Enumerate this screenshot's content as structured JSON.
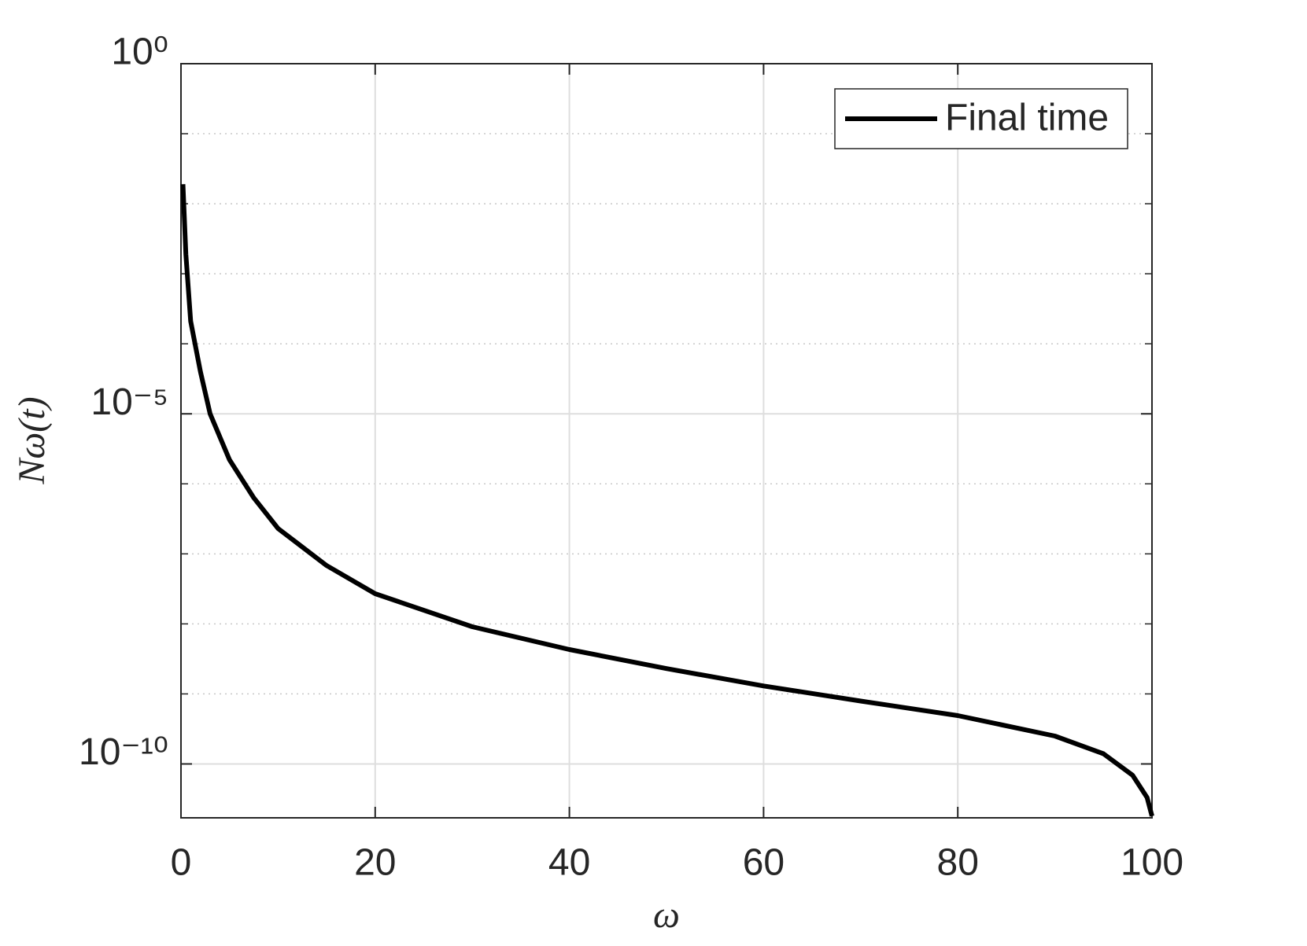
{
  "chart_data": {
    "type": "line",
    "xlabel": "ω",
    "ylabel": "Nω(t)",
    "x": [
      0.2,
      0.5,
      1,
      2,
      3,
      5,
      7.5,
      10,
      15,
      20,
      30,
      40,
      50,
      60,
      70,
      80,
      90,
      95,
      98,
      99.5,
      100
    ],
    "series": [
      {
        "name": "Final time",
        "color": "#000000",
        "values": [
          0.019,
          0.0019,
          0.00021,
          4e-05,
          1e-05,
          2.2e-06,
          6.3e-07,
          2.3e-07,
          6.8e-08,
          2.7e-08,
          9.1e-09,
          4.3e-09,
          2.3e-09,
          1.3e-09,
          7.9e-10,
          4.9e-10,
          2.5e-10,
          1.4e-10,
          6.9e-11,
          3.3e-11,
          1.8e-11
        ]
      }
    ],
    "xlim": [
      0,
      100
    ],
    "xticks": [
      0,
      20,
      40,
      60,
      80,
      100
    ],
    "ylim": [
      1.7e-11,
      1
    ],
    "yscale": "log",
    "yticks": [
      {
        "value": 1e-10,
        "label": "10⁻¹⁰"
      },
      {
        "value": 1e-05,
        "label": "10⁻⁵"
      },
      {
        "value": 1,
        "label": "10⁰"
      }
    ],
    "yminorticks": [
      1e-09,
      1e-08,
      1e-07,
      1e-06,
      0.0001,
      0.001,
      0.01,
      0.1
    ],
    "grid": true,
    "legend": "northeast"
  }
}
